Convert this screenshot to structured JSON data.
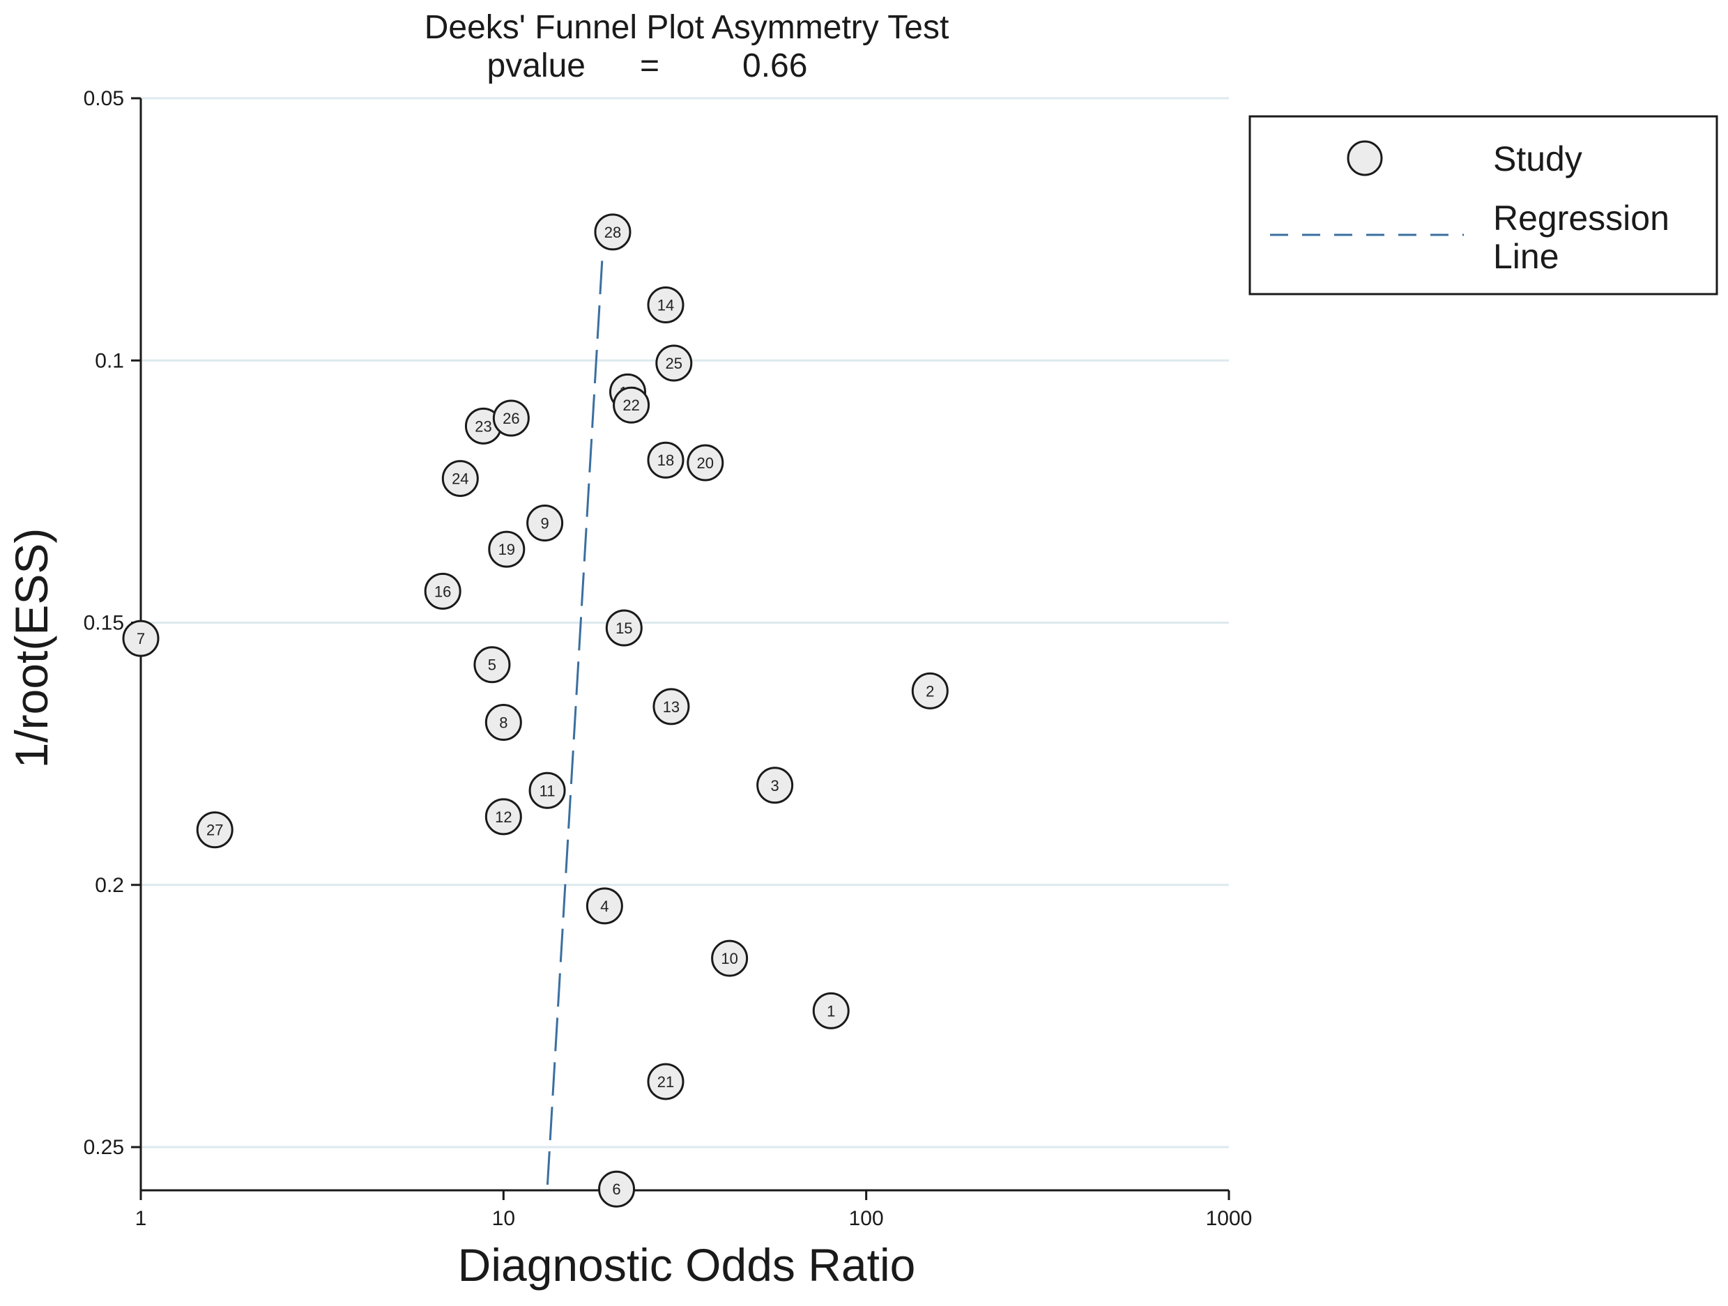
{
  "chart_data": {
    "type": "scatter",
    "title": "Deeks' Funnel Plot Asymmetry Test",
    "subtitle_label": "pvalue",
    "subtitle_eq": "=",
    "subtitle_value": "0.66",
    "xlabel": "Diagnostic Odds Ratio",
    "ylabel": "1/root(ESS)",
    "x_scale": "log",
    "xlim": [
      1,
      1000
    ],
    "ylim": [
      0.05,
      0.258
    ],
    "y_inverted": true,
    "xticks": [
      1,
      10,
      100,
      1000
    ],
    "xtick_labels": [
      "1",
      "10",
      "100",
      "1000"
    ],
    "yticks": [
      0.05,
      0.1,
      0.15,
      0.2,
      0.25
    ],
    "ytick_labels": [
      "0.05",
      "0.1",
      "0.15",
      "0.2",
      "0.25"
    ],
    "grid": "horizontal",
    "legend_position": "top-right, outside plot",
    "series": [
      {
        "name": "Study",
        "marker": "circle",
        "color": "#ececec",
        "points": [
          {
            "label": "1",
            "x": 80,
            "y": 0.224
          },
          {
            "label": "2",
            "x": 150,
            "y": 0.163
          },
          {
            "label": "3",
            "x": 56,
            "y": 0.181
          },
          {
            "label": "4",
            "x": 19,
            "y": 0.204
          },
          {
            "label": "5",
            "x": 9.3,
            "y": 0.158
          },
          {
            "label": "6",
            "x": 20.5,
            "y": 0.258
          },
          {
            "label": "7",
            "x": 1.0,
            "y": 0.153
          },
          {
            "label": "8",
            "x": 10.0,
            "y": 0.169
          },
          {
            "label": "9",
            "x": 13.0,
            "y": 0.131
          },
          {
            "label": "10",
            "x": 42,
            "y": 0.214
          },
          {
            "label": "11",
            "x": 13.2,
            "y": 0.182
          },
          {
            "label": "12",
            "x": 10.0,
            "y": 0.187
          },
          {
            "label": "13",
            "x": 29,
            "y": 0.166
          },
          {
            "label": "14",
            "x": 28,
            "y": 0.0894
          },
          {
            "label": "15",
            "x": 21.5,
            "y": 0.151
          },
          {
            "label": "16",
            "x": 6.8,
            "y": 0.144
          },
          {
            "label": "17",
            "x": 22,
            "y": 0.106
          },
          {
            "label": "18",
            "x": 28,
            "y": 0.119
          },
          {
            "label": "19",
            "x": 10.2,
            "y": 0.136
          },
          {
            "label": "20",
            "x": 36,
            "y": 0.1195
          },
          {
            "label": "21",
            "x": 28,
            "y": 0.2375
          },
          {
            "label": "22",
            "x": 22.5,
            "y": 0.1085
          },
          {
            "label": "23",
            "x": 8.8,
            "y": 0.1125
          },
          {
            "label": "24",
            "x": 7.6,
            "y": 0.1225
          },
          {
            "label": "25",
            "x": 29.5,
            "y": 0.1005
          },
          {
            "label": "26",
            "x": 10.5,
            "y": 0.111
          },
          {
            "label": "27",
            "x": 1.6,
            "y": 0.1895
          },
          {
            "label": "28",
            "x": 20.0,
            "y": 0.0755
          }
        ]
      },
      {
        "name": "Regression Line",
        "line_style": "dashed",
        "color": "#3a6fa0",
        "points": [
          {
            "x": 18.7,
            "y": 0.081
          },
          {
            "x": 13.2,
            "y": 0.258
          }
        ]
      }
    ],
    "legend": {
      "items": [
        {
          "label": "Study",
          "marker": "circle"
        },
        {
          "label_line1": "Regression",
          "label_line2": "Line",
          "marker": "dashed-line"
        }
      ]
    }
  }
}
